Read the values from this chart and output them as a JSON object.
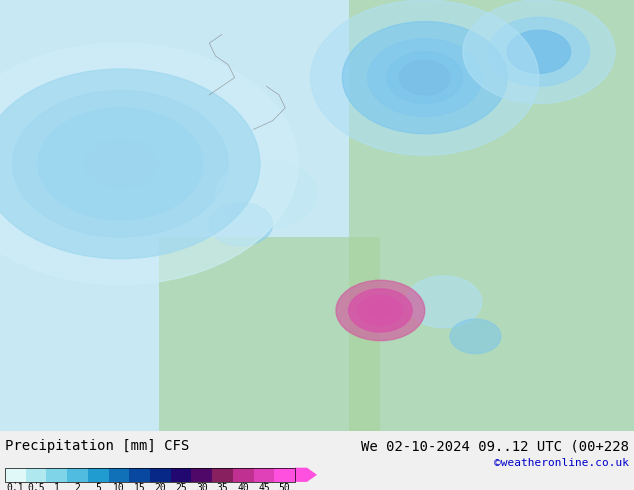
{
  "title_left": "Precipitation [mm] CFS",
  "title_right": "We 02-10-2024 09..12 UTC (00+228",
  "credit": "©weatheronline.co.uk",
  "colorbar_levels": [
    0.1,
    0.5,
    1,
    2,
    5,
    10,
    15,
    20,
    25,
    30,
    35,
    40,
    45,
    50
  ],
  "colorbar_colors": [
    "#e0f8f8",
    "#b0e8f0",
    "#80d4e8",
    "#50bce0",
    "#209cd0",
    "#1070b8",
    "#0848a0",
    "#082888",
    "#200870",
    "#500868",
    "#882060",
    "#c03090",
    "#e040b8",
    "#ff50e0"
  ],
  "bg_color": "#f0f0f0",
  "map_bg": "#aad4a0",
  "label_fontsize": 9,
  "credit_color": "#0000cc",
  "credit_fontsize": 8,
  "title_fontsize": 10
}
